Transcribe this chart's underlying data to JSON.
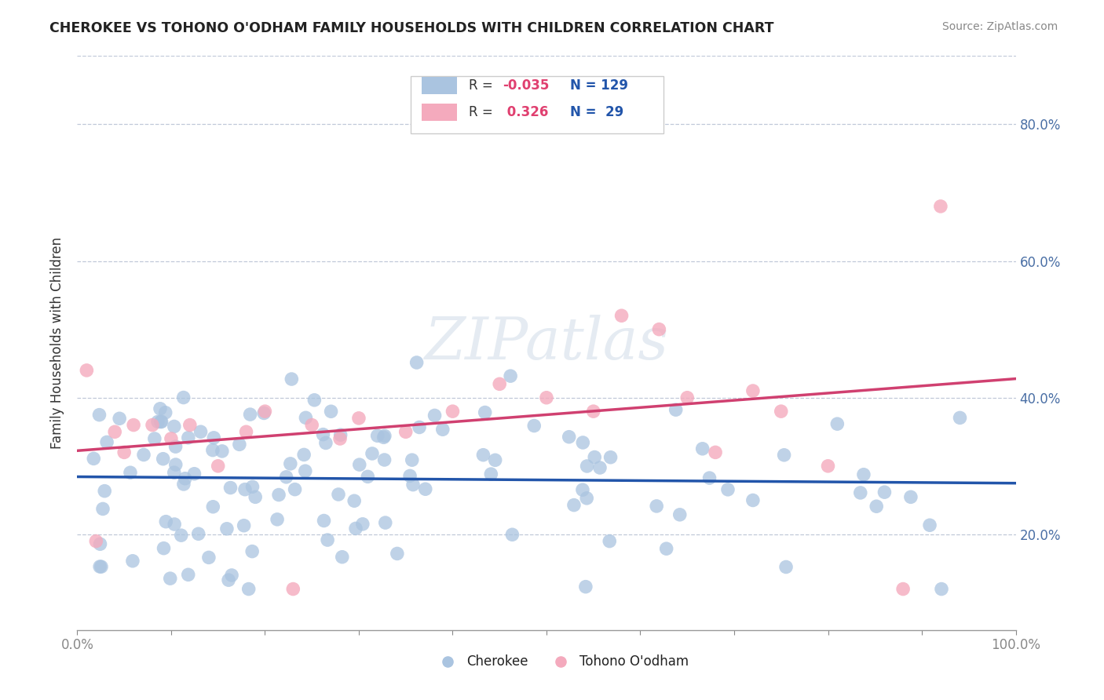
{
  "title": "CHEROKEE VS TOHONO O'ODHAM FAMILY HOUSEHOLDS WITH CHILDREN CORRELATION CHART",
  "source": "Source: ZipAtlas.com",
  "ylabel": "Family Households with Children",
  "y_ticks": [
    0.2,
    0.4,
    0.6,
    0.8
  ],
  "y_tick_labels": [
    "20.0%",
    "40.0%",
    "60.0%",
    "80.0%"
  ],
  "xlim": [
    0.0,
    1.0
  ],
  "ylim": [
    0.06,
    0.9
  ],
  "cherokee_color": "#aac4e0",
  "cherokee_line_color": "#2255aa",
  "tohono_color": "#f4aabd",
  "tohono_line_color": "#d04070",
  "background_color": "#ffffff",
  "r1": "-0.035",
  "n1": "129",
  "r2": "0.326",
  "n2": "29",
  "cherokee_line_y0": 0.315,
  "cherokee_line_y1": 0.3,
  "tohono_line_y0": 0.285,
  "tohono_line_y1": 0.445
}
